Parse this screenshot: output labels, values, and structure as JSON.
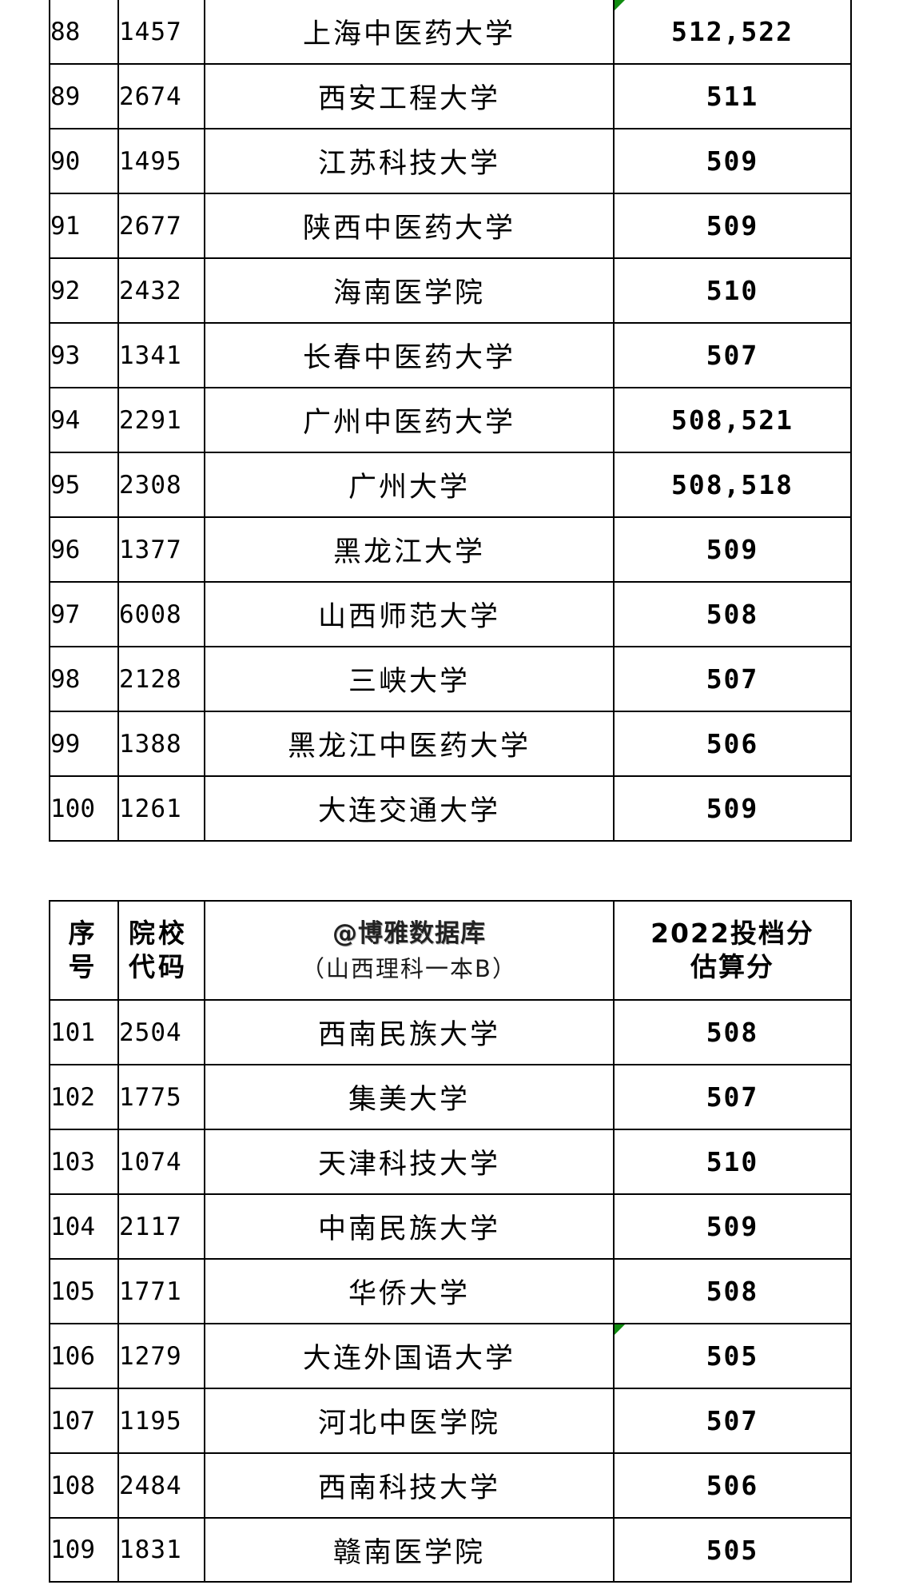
{
  "table_top": {
    "rows": [
      {
        "rank": "88",
        "code": "1457",
        "name": "上海中医药大学",
        "score": "512,522",
        "flag": true
      },
      {
        "rank": "89",
        "code": "2674",
        "name": "西安工程大学",
        "score": "511"
      },
      {
        "rank": "90",
        "code": "1495",
        "name": "江苏科技大学",
        "score": "509"
      },
      {
        "rank": "91",
        "code": "2677",
        "name": "陕西中医药大学",
        "score": "509"
      },
      {
        "rank": "92",
        "code": "2432",
        "name": "海南医学院",
        "score": "510"
      },
      {
        "rank": "93",
        "code": "1341",
        "name": "长春中医药大学",
        "score": "507"
      },
      {
        "rank": "94",
        "code": "2291",
        "name": "广州中医药大学",
        "score": "508,521"
      },
      {
        "rank": "95",
        "code": "2308",
        "name": "广州大学",
        "score": "508,518"
      },
      {
        "rank": "96",
        "code": "1377",
        "name": "黑龙江大学",
        "score": "509"
      },
      {
        "rank": "97",
        "code": "6008",
        "name": "山西师范大学",
        "score": "508"
      },
      {
        "rank": "98",
        "code": "2128",
        "name": "三峡大学",
        "score": "507"
      },
      {
        "rank": "99",
        "code": "1388",
        "name": "黑龙江中医药大学",
        "score": "506"
      },
      {
        "rank": "100",
        "code": "1261",
        "name": "大连交通大学",
        "score": "509"
      }
    ]
  },
  "table_bottom": {
    "header": {
      "rank_line1": "序",
      "rank_line2": "号",
      "code_line1": "院校",
      "code_line2": "代码",
      "brand": "@博雅数据库",
      "subtitle": "（山西理科一本B）",
      "score_line1": "2022投档分",
      "score_line2": "估算分"
    },
    "rows": [
      {
        "rank": "101",
        "code": "2504",
        "name": "西南民族大学",
        "score": "508"
      },
      {
        "rank": "102",
        "code": "1775",
        "name": "集美大学",
        "score": "507"
      },
      {
        "rank": "103",
        "code": "1074",
        "name": "天津科技大学",
        "score": "510"
      },
      {
        "rank": "104",
        "code": "2117",
        "name": "中南民族大学",
        "score": "509"
      },
      {
        "rank": "105",
        "code": "1771",
        "name": "华侨大学",
        "score": "508"
      },
      {
        "rank": "106",
        "code": "1279",
        "name": "大连外国语大学",
        "score": "505",
        "flag": true
      },
      {
        "rank": "107",
        "code": "1195",
        "name": "河北中医学院",
        "score": "507"
      },
      {
        "rank": "108",
        "code": "2484",
        "name": "西南科技大学",
        "score": "506"
      },
      {
        "rank": "109",
        "code": "1831",
        "name": "赣南医学院",
        "score": "505"
      }
    ]
  },
  "colors": {
    "border": "#000000",
    "cell_flag": "#108c10",
    "background": "#ffffff"
  }
}
